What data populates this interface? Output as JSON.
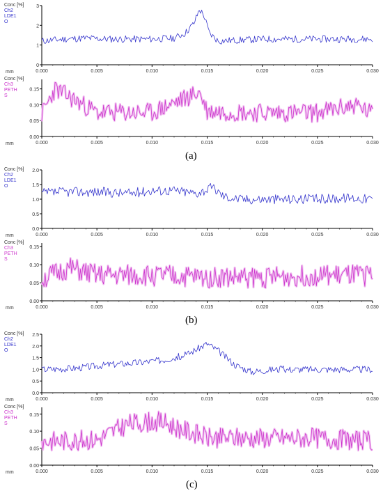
{
  "figure": {
    "panels": [
      {
        "label": "(a)"
      },
      {
        "label": "(b)"
      },
      {
        "label": "(c)"
      }
    ]
  },
  "colors": {
    "ch2": "#3333cc",
    "ch3": "#cc33cc",
    "ch3_glow": "#f2c6f2",
    "axis": "#000000",
    "tick_text": "#333333"
  },
  "chart_data": [
    {
      "type": "line",
      "panel": "(a)",
      "channel": "Ch2",
      "ylabel_lines": [
        "Conc [%]",
        "Ch2",
        "LDE1",
        "O"
      ],
      "xlabel": "mm",
      "xlim": [
        0.0,
        0.03
      ],
      "ylim": [
        0,
        3
      ],
      "xticks": [
        "0.000",
        "0.005",
        "0.010",
        "0.015",
        "0.020",
        "0.025",
        "0.030"
      ],
      "yticks": [
        "0",
        "1",
        "2",
        "3"
      ],
      "series": [
        {
          "x": [
            0.0,
            0.002,
            0.004,
            0.006,
            0.008,
            0.01,
            0.012,
            0.013,
            0.0138,
            0.0143,
            0.0147,
            0.0152,
            0.016,
            0.018,
            0.02,
            0.022,
            0.024,
            0.026,
            0.028,
            0.03
          ],
          "values": [
            1.2,
            1.3,
            1.35,
            1.3,
            1.3,
            1.3,
            1.35,
            1.6,
            2.1,
            2.8,
            2.5,
            1.6,
            1.2,
            1.25,
            1.3,
            1.3,
            1.3,
            1.3,
            1.3,
            1.3
          ]
        }
      ],
      "noise": 0.18,
      "seed": 11
    },
    {
      "type": "line",
      "panel": "(a)",
      "channel": "Ch3",
      "ylabel_lines": [
        "Conc [%]",
        "Ch3",
        "PETH",
        "S"
      ],
      "xlabel": "mm",
      "xlim": [
        0.0,
        0.03
      ],
      "ylim": [
        0,
        0.18
      ],
      "xticks": [
        "0.000",
        "0.005",
        "0.010",
        "0.015",
        "0.020",
        "0.025",
        "0.030"
      ],
      "yticks": [
        "0.00",
        "0.05",
        "0.10",
        "0.15"
      ],
      "series": [
        {
          "x": [
            0.0,
            0.0012,
            0.005,
            0.01,
            0.0143,
            0.015,
            0.02,
            0.025,
            0.0285,
            0.03
          ],
          "values": [
            0.07,
            0.15,
            0.075,
            0.075,
            0.14,
            0.08,
            0.075,
            0.075,
            0.1,
            0.07
          ]
        }
      ],
      "noise": 0.03,
      "seed": 23
    },
    {
      "type": "line",
      "panel": "(b)",
      "channel": "Ch2",
      "ylabel_lines": [
        "Conc [%]",
        "Ch2",
        "LDE1",
        "O"
      ],
      "xlabel": "mm",
      "xlim": [
        0.0,
        0.03
      ],
      "ylim": [
        0,
        2.0
      ],
      "xticks": [
        "0.000",
        "0.005",
        "0.010",
        "0.015",
        "0.020",
        "0.025",
        "0.030"
      ],
      "yticks": [
        "0.0",
        "0.5",
        "1.0",
        "1.5",
        "2.0"
      ],
      "series": [
        {
          "x": [
            0.0,
            0.002,
            0.005,
            0.008,
            0.01,
            0.012,
            0.014,
            0.0155,
            0.0165,
            0.018,
            0.02,
            0.022,
            0.025,
            0.028,
            0.03
          ],
          "values": [
            1.2,
            1.25,
            1.25,
            1.2,
            1.3,
            1.3,
            1.2,
            1.4,
            1.1,
            1.0,
            1.0,
            1.0,
            1.0,
            1.05,
            1.0
          ]
        }
      ],
      "noise": 0.17,
      "seed": 37
    },
    {
      "type": "line",
      "panel": "(b)",
      "channel": "Ch3",
      "ylabel_lines": [
        "Conc [%]",
        "Ch3",
        "PETH",
        "S"
      ],
      "xlabel": "mm",
      "xlim": [
        0.0,
        0.03
      ],
      "ylim": [
        0,
        0.16
      ],
      "xticks": [
        "0.000",
        "0.005",
        "0.010",
        "0.015",
        "0.020",
        "0.025",
        "0.030"
      ],
      "yticks": [
        "0.00",
        "0.05",
        "0.10",
        "0.15"
      ],
      "series": [
        {
          "x": [
            0.0,
            0.0025,
            0.005,
            0.01,
            0.015,
            0.02,
            0.025,
            0.03
          ],
          "values": [
            0.06,
            0.09,
            0.07,
            0.07,
            0.065,
            0.065,
            0.07,
            0.07
          ]
        }
      ],
      "noise": 0.03,
      "seed": 51
    },
    {
      "type": "line",
      "panel": "(c)",
      "channel": "Ch2",
      "ylabel_lines": [
        "Conc [%]",
        "Ch2",
        "LDE1",
        "O"
      ],
      "xlabel": "mm",
      "xlim": [
        0.0,
        0.03
      ],
      "ylim": [
        0,
        2.5
      ],
      "xticks": [
        "0.000",
        "0.005",
        "0.010",
        "0.015",
        "0.020",
        "0.025",
        "0.030"
      ],
      "yticks": [
        "0.0",
        "0.5",
        "1.0",
        "1.5",
        "2.0",
        "2.5"
      ],
      "series": [
        {
          "x": [
            0.0,
            0.003,
            0.006,
            0.009,
            0.011,
            0.013,
            0.015,
            0.016,
            0.0175,
            0.019,
            0.021,
            0.024,
            0.027,
            0.03
          ],
          "values": [
            1.0,
            1.05,
            1.2,
            1.3,
            1.4,
            1.6,
            2.1,
            1.8,
            1.2,
            0.9,
            1.0,
            1.0,
            1.0,
            1.0
          ]
        }
      ],
      "noise": 0.15,
      "seed": 67
    },
    {
      "type": "line",
      "panel": "(c)",
      "channel": "Ch3",
      "ylabel_lines": [
        "Conc [%]",
        "Ch3",
        "PETH",
        "S"
      ],
      "xlabel": "mm",
      "xlim": [
        0.0,
        0.03
      ],
      "ylim": [
        0,
        0.17
      ],
      "xticks": [
        "0.000",
        "0.005",
        "0.010",
        "0.015",
        "0.020",
        "0.025",
        "0.030"
      ],
      "yticks": [
        "0.00",
        "0.05",
        "0.10",
        "0.15"
      ],
      "series": [
        {
          "x": [
            0.0,
            0.005,
            0.0078,
            0.0106,
            0.015,
            0.02,
            0.025,
            0.03
          ],
          "values": [
            0.07,
            0.075,
            0.12,
            0.13,
            0.08,
            0.08,
            0.08,
            0.07
          ]
        }
      ],
      "noise": 0.03,
      "seed": 83
    }
  ]
}
